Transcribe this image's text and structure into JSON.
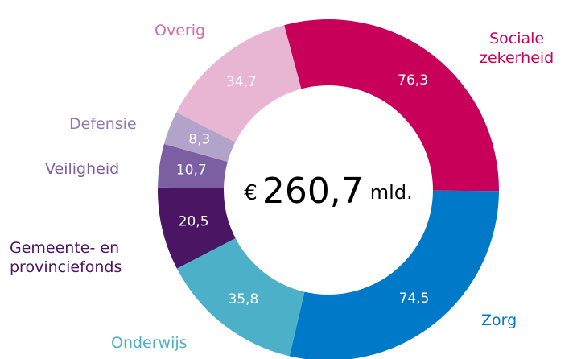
{
  "chart_data": {
    "type": "donut",
    "categories": [
      "Sociale\nzekerheid",
      "Zorg",
      "Onderwijs",
      "Gemeente- en\nprovinciefonds",
      "Veiligheid",
      "Defensie",
      "Overig"
    ],
    "values": [
      76.3,
      74.5,
      35.8,
      20.5,
      10.7,
      8.3,
      34.7
    ],
    "value_labels": [
      "76,3",
      "74,5",
      "35,8",
      "20,5",
      "10,7",
      "8,3",
      "34,7"
    ],
    "colors": [
      "#c8005a",
      "#0079c8",
      "#4db0c9",
      "#4a1562",
      "#7c5ea2",
      "#b2a3cb",
      "#e8b5d3"
    ],
    "label_colors": [
      "#c8005a",
      "#0079c8",
      "#4db0c9",
      "#4a1562",
      "#7c5ea2",
      "#8c7ab2",
      "#d46ca8"
    ],
    "center_text": {
      "currency": "€",
      "amount": "260,7",
      "unit": "mld."
    }
  }
}
